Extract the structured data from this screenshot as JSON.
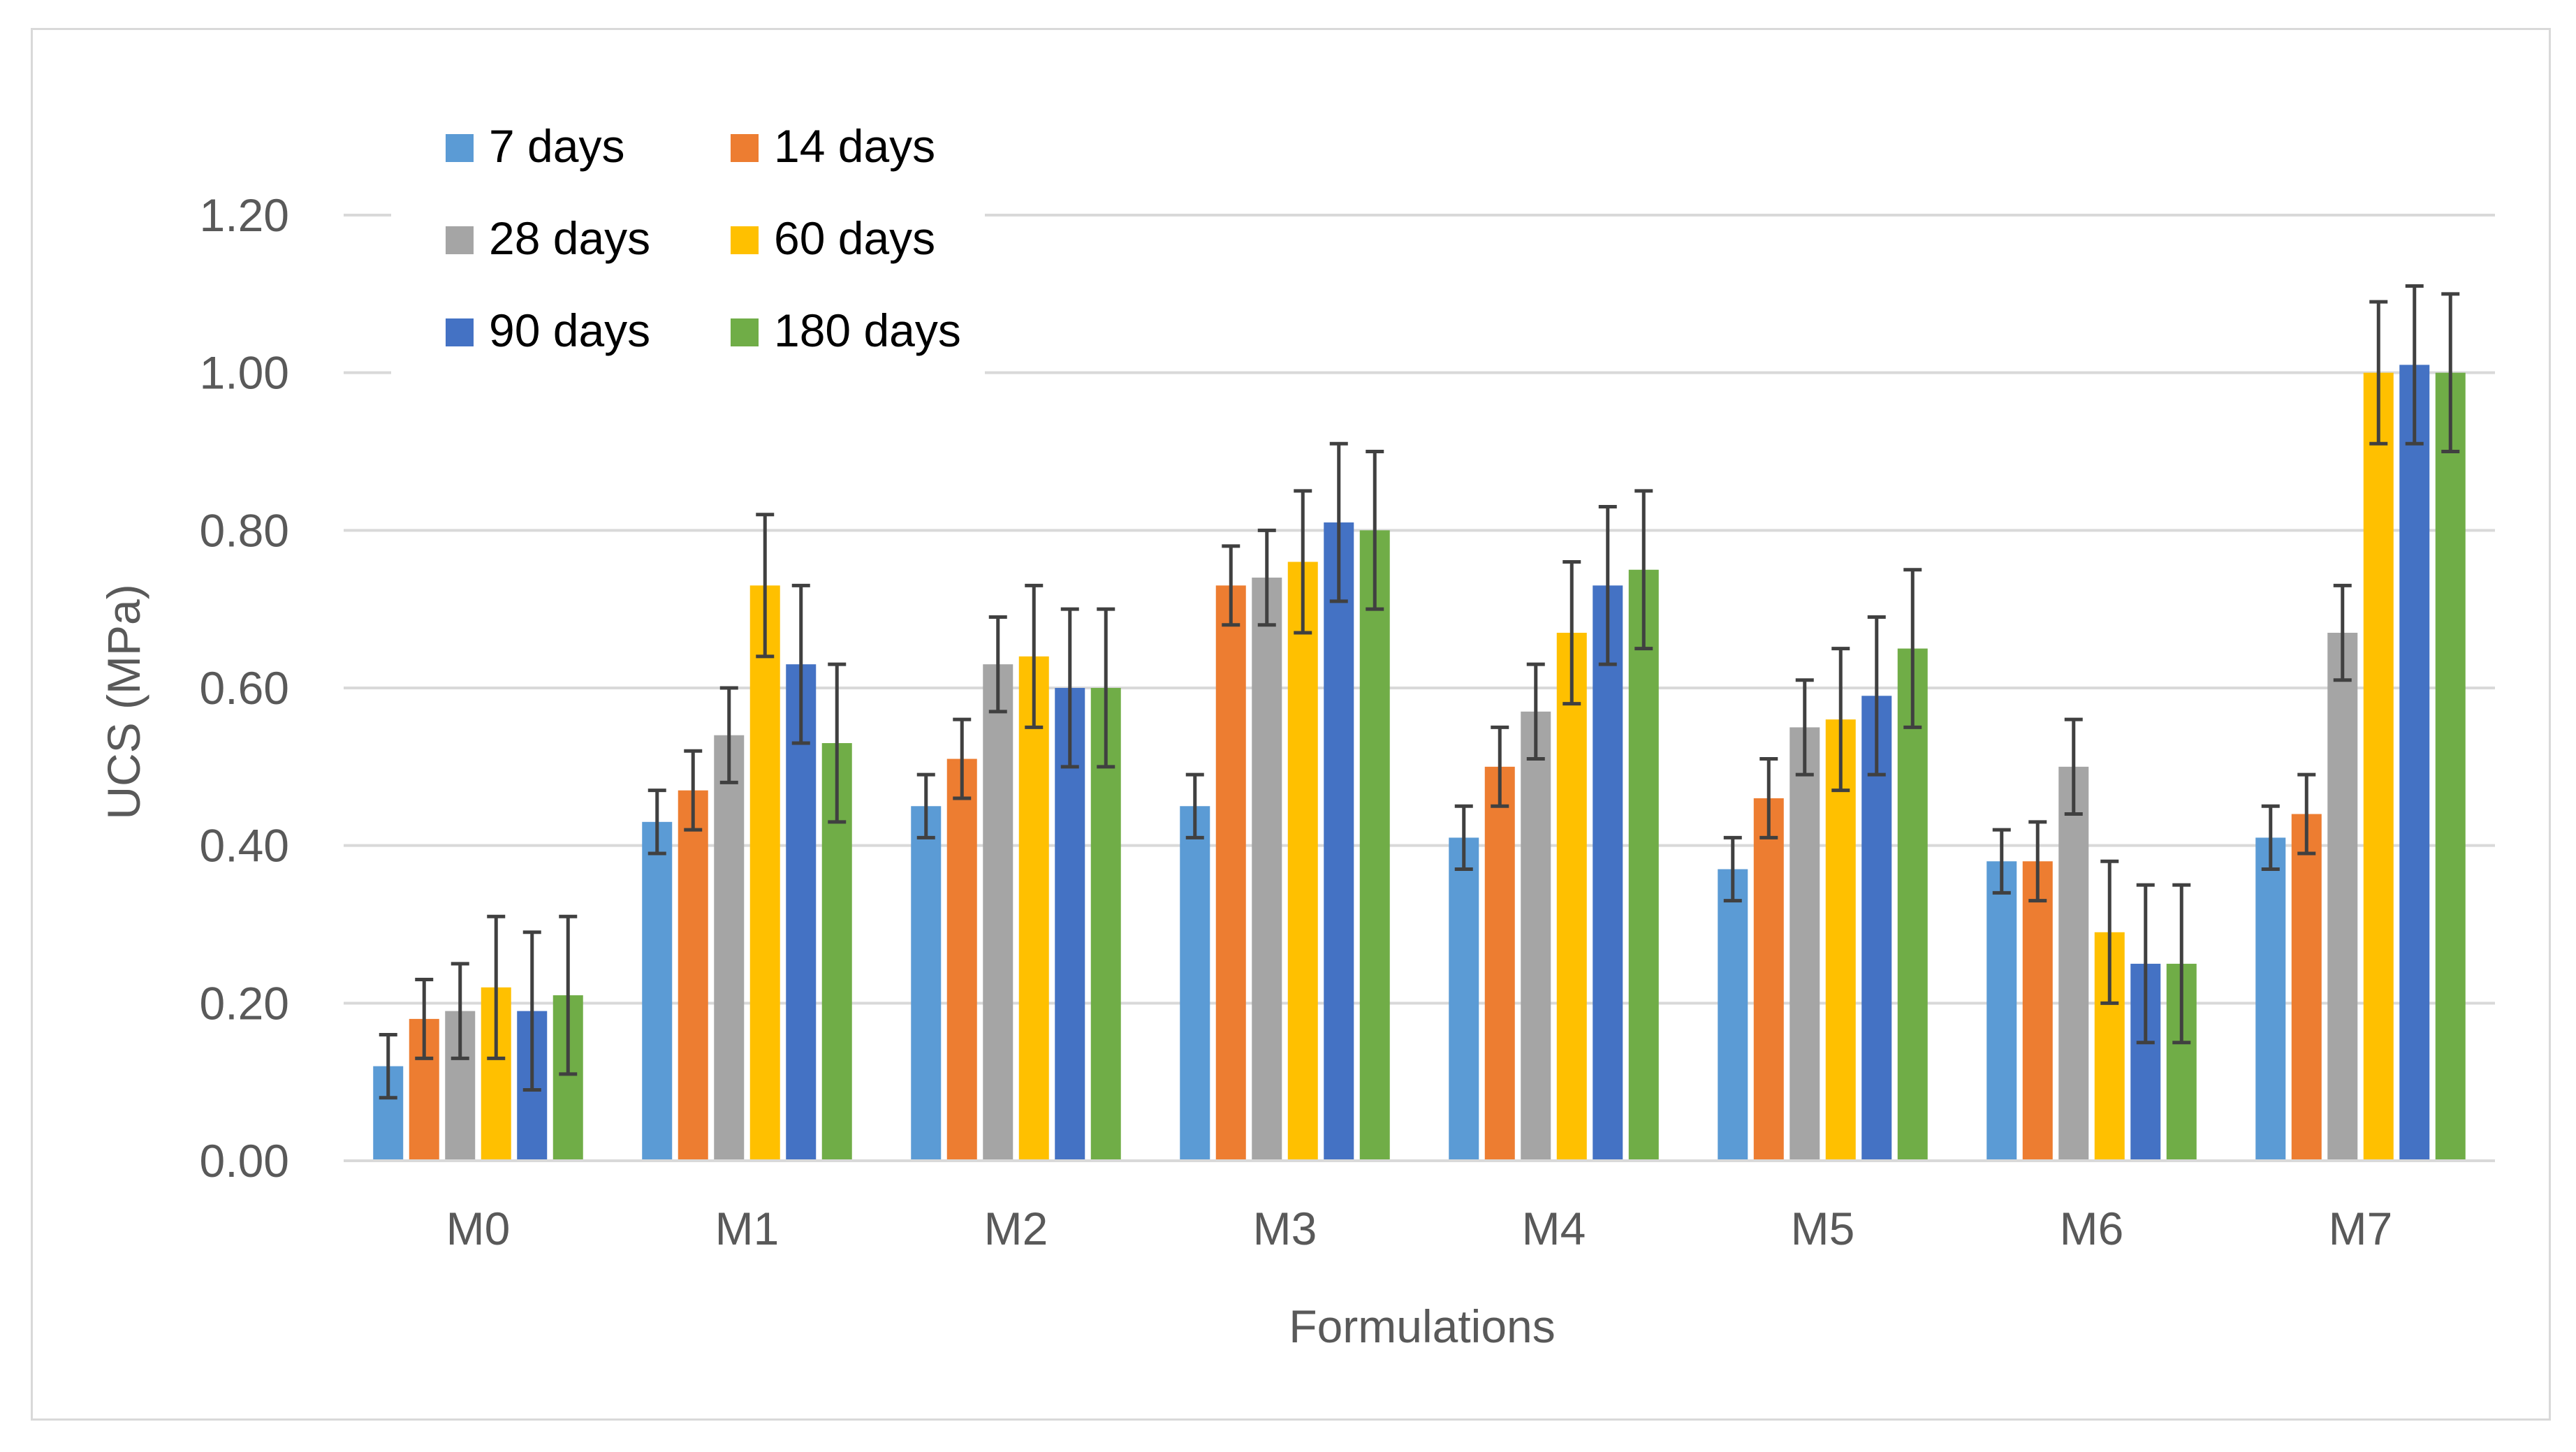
{
  "chart_data": {
    "type": "bar",
    "title": "",
    "xlabel": "Formulations",
    "ylabel": "UCS (MPa)",
    "ylim": [
      0,
      1.2
    ],
    "yticks": [
      "0.00",
      "0.20",
      "0.40",
      "0.60",
      "0.80",
      "1.00",
      "1.20"
    ],
    "categories": [
      "M0",
      "M1",
      "M2",
      "M3",
      "M4",
      "M5",
      "M6",
      "M7"
    ],
    "legend_position": "top-left",
    "series": [
      {
        "name": "7 days",
        "color": "#5b9bd5",
        "values": [
          0.12,
          0.43,
          0.45,
          0.45,
          0.41,
          0.37,
          0.38,
          0.41
        ],
        "errors": [
          0.04,
          0.04,
          0.04,
          0.04,
          0.04,
          0.04,
          0.04,
          0.04
        ]
      },
      {
        "name": "14 days",
        "color": "#ed7d31",
        "values": [
          0.18,
          0.47,
          0.51,
          0.73,
          0.5,
          0.46,
          0.38,
          0.44
        ],
        "errors": [
          0.05,
          0.05,
          0.05,
          0.05,
          0.05,
          0.05,
          0.05,
          0.05
        ]
      },
      {
        "name": "28 days",
        "color": "#a5a5a5",
        "values": [
          0.19,
          0.54,
          0.63,
          0.74,
          0.57,
          0.55,
          0.5,
          0.67
        ],
        "errors": [
          0.06,
          0.06,
          0.06,
          0.06,
          0.06,
          0.06,
          0.06,
          0.06
        ]
      },
      {
        "name": "60 days",
        "color": "#ffc000",
        "values": [
          0.22,
          0.73,
          0.64,
          0.76,
          0.67,
          0.56,
          0.29,
          1.0
        ],
        "errors": [
          0.09,
          0.09,
          0.09,
          0.09,
          0.09,
          0.09,
          0.09,
          0.09
        ]
      },
      {
        "name": "90 days",
        "color": "#4472c4",
        "values": [
          0.19,
          0.63,
          0.6,
          0.81,
          0.73,
          0.59,
          0.25,
          1.01
        ],
        "errors": [
          0.1,
          0.1,
          0.1,
          0.1,
          0.1,
          0.1,
          0.1,
          0.1
        ]
      },
      {
        "name": "180 days",
        "color": "#70ad47",
        "values": [
          0.21,
          0.53,
          0.6,
          0.8,
          0.75,
          0.65,
          0.25,
          1.0
        ],
        "errors": [
          0.1,
          0.1,
          0.1,
          0.1,
          0.1,
          0.1,
          0.1,
          0.1
        ]
      }
    ]
  }
}
